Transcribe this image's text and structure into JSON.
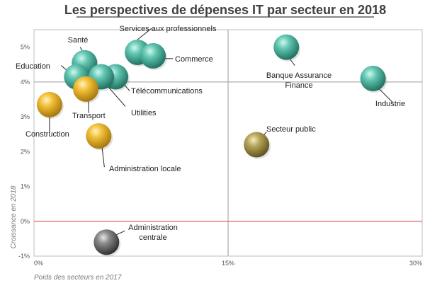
{
  "chart_data": {
    "type": "scatter",
    "title": "Les perspectives de dépenses IT par secteur en 2018",
    "xlabel": "Poids des secteurs en 2017",
    "ylabel": "Croissance en 2018",
    "xlim": [
      0,
      30
    ],
    "ylim": [
      -1,
      5.5
    ],
    "xticks": [
      "0%",
      "15%",
      "30%"
    ],
    "yticks": [
      "-1%",
      "0%",
      "1%",
      "2%",
      "3%",
      "4%",
      "5%"
    ],
    "reference_lines": {
      "x": 15,
      "y": 4,
      "zero_line_color": "#e06060"
    },
    "points": [
      {
        "label": "Services aux professionnels",
        "x": 8.0,
        "y": 4.85,
        "color": "teal"
      },
      {
        "label": "Commerce",
        "x": 9.2,
        "y": 4.75,
        "color": "teal"
      },
      {
        "label": "Santé",
        "x": 3.9,
        "y": 4.55,
        "color": "teal"
      },
      {
        "label": "Education",
        "x": 3.3,
        "y": 4.15,
        "color": "teal"
      },
      {
        "label": "Télécommunications",
        "x": 6.3,
        "y": 4.15,
        "color": "teal"
      },
      {
        "label": "Utilities",
        "x": 5.2,
        "y": 4.15,
        "color": "teal"
      },
      {
        "label": "Transport",
        "x": 4.0,
        "y": 3.8,
        "color": "gold"
      },
      {
        "label": "Construction",
        "x": 1.2,
        "y": 3.35,
        "color": "gold"
      },
      {
        "label": "Administration locale",
        "x": 5.0,
        "y": 2.45,
        "color": "gold"
      },
      {
        "label": "Banque Assurance Finance",
        "x": 19.5,
        "y": 5.0,
        "color": "teal"
      },
      {
        "label": "Industrie",
        "x": 26.2,
        "y": 4.1,
        "color": "teal"
      },
      {
        "label": "Secteur public",
        "x": 17.2,
        "y": 2.2,
        "color": "olive"
      },
      {
        "label": "Administration centrale",
        "x": 5.6,
        "y": -0.6,
        "color": "gray"
      }
    ]
  }
}
